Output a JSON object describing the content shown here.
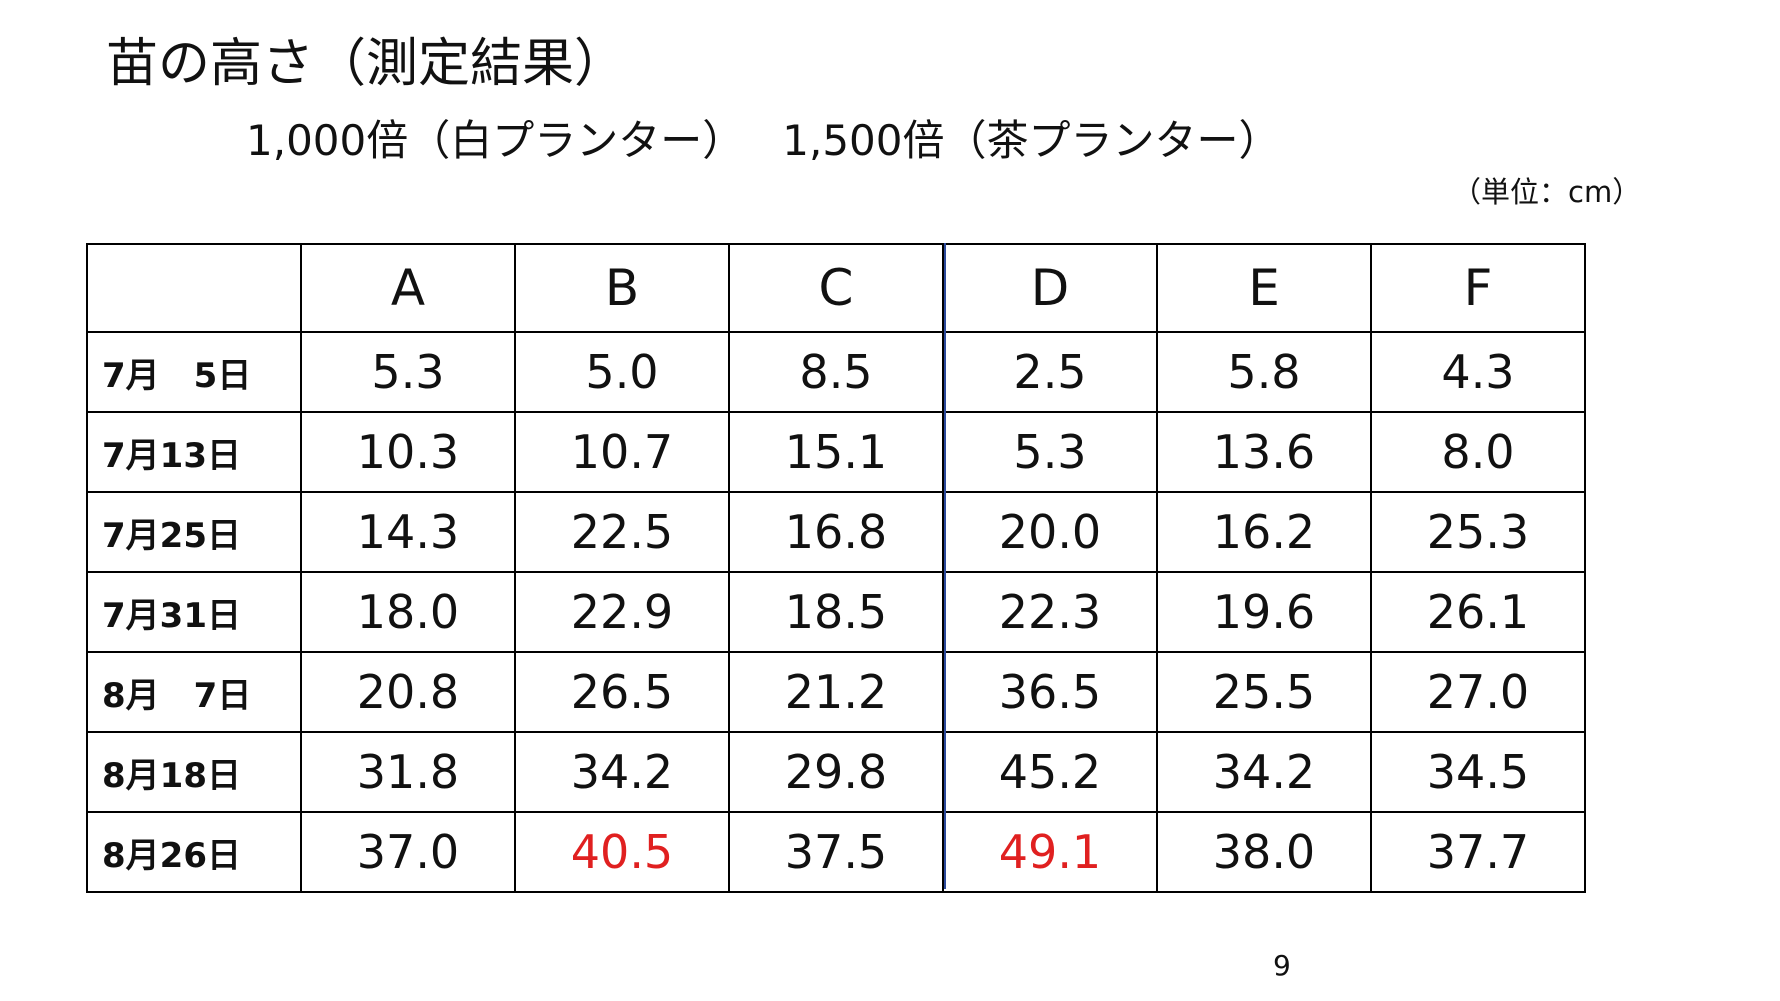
{
  "slide": {
    "title": "苗の高さ（測定結果）",
    "subtitle_left": "1,000倍（白プランター）",
    "subtitle_right": "1,500倍（茶プランター）",
    "unit": "（単位：cm）",
    "page_number": "9"
  },
  "table": {
    "columns": [
      "A",
      "B",
      "C",
      "D",
      "E",
      "F"
    ],
    "rows": [
      {
        "date": "7月　5日",
        "values": [
          "5.3",
          "5.0",
          "8.5",
          "2.5",
          "5.8",
          "4.3"
        ],
        "highlight": [
          false,
          false,
          false,
          false,
          false,
          false
        ]
      },
      {
        "date": "7月13日",
        "values": [
          "10.3",
          "10.7",
          "15.1",
          "5.3",
          "13.6",
          "8.0"
        ],
        "highlight": [
          false,
          false,
          false,
          false,
          false,
          false
        ]
      },
      {
        "date": "7月25日",
        "values": [
          "14.3",
          "22.5",
          "16.8",
          "20.0",
          "16.2",
          "25.3"
        ],
        "highlight": [
          false,
          false,
          false,
          false,
          false,
          false
        ]
      },
      {
        "date": "7月31日",
        "values": [
          "18.0",
          "22.9",
          "18.5",
          "22.3",
          "19.6",
          "26.1"
        ],
        "highlight": [
          false,
          false,
          false,
          false,
          false,
          false
        ]
      },
      {
        "date": "8月　7日",
        "values": [
          "20.8",
          "26.5",
          "21.2",
          "36.5",
          "25.5",
          "27.0"
        ],
        "highlight": [
          false,
          false,
          false,
          false,
          false,
          false
        ]
      },
      {
        "date": "8月18日",
        "values": [
          "31.8",
          "34.2",
          "29.8",
          "45.2",
          "34.2",
          "34.5"
        ],
        "highlight": [
          false,
          false,
          false,
          false,
          false,
          false
        ]
      },
      {
        "date": "8月26日",
        "values": [
          "37.0",
          "40.5",
          "37.5",
          "49.1",
          "38.0",
          "37.7"
        ],
        "highlight": [
          false,
          true,
          false,
          true,
          false,
          false
        ]
      }
    ]
  },
  "colors": {
    "highlight": "#e02020",
    "divider": "#2c4a9c",
    "text": "#111111"
  }
}
